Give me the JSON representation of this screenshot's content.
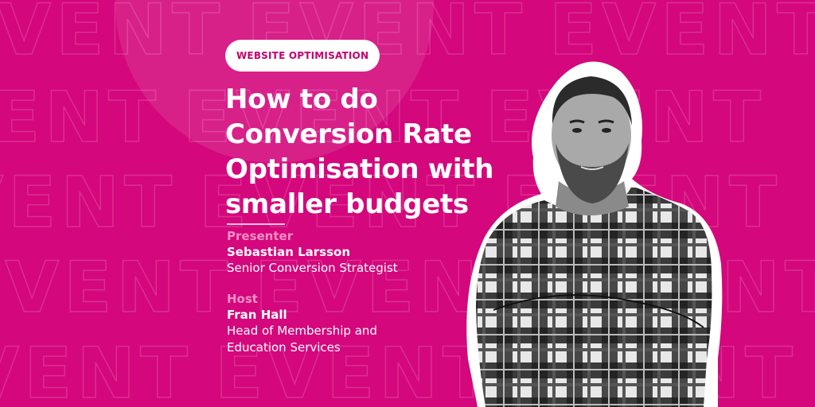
{
  "background": {
    "color": "#d4077c",
    "watermark_word": "EVENT"
  },
  "tag": {
    "label": "WEBSITE OPTIMISATION"
  },
  "title": {
    "lines": [
      "How to do",
      "Conversion Rate",
      "Optimisation with",
      "smaller budgets"
    ]
  },
  "presenter": {
    "label": "Presenter",
    "name": "Sebastian Larsson",
    "role": "Senior Conversion Strategist"
  },
  "host": {
    "label": "Host",
    "name": "Fran Hall",
    "role_lines": [
      "Head of Membership and",
      "Education Services"
    ]
  },
  "colors": {
    "accent_label": "#f290c5",
    "tag_text": "#c3006f",
    "text": "#ffffff"
  }
}
